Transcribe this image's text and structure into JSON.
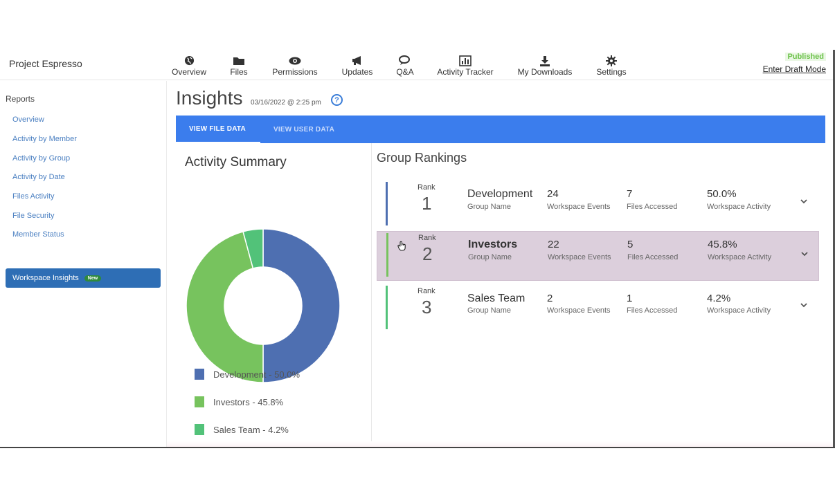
{
  "header": {
    "project": "Project Espresso",
    "nav": [
      {
        "label": "Overview",
        "icon": "globe-icon"
      },
      {
        "label": "Files",
        "icon": "folder-icon"
      },
      {
        "label": "Permissions",
        "icon": "eye-icon"
      },
      {
        "label": "Updates",
        "icon": "megaphone-icon"
      },
      {
        "label": "Q&A",
        "icon": "chat-icon"
      },
      {
        "label": "Activity Tracker",
        "icon": "bar-chart-icon"
      },
      {
        "label": "My Downloads",
        "icon": "download-icon"
      },
      {
        "label": "Settings",
        "icon": "gear-icon"
      }
    ],
    "status": "Published",
    "draft_link": "Enter Draft Mode"
  },
  "sidebar": {
    "heading": "Reports",
    "links": [
      "Overview",
      "Activity by Member",
      "Activity by Group",
      "Activity by Date",
      "Files Activity",
      "File Security",
      "Member Status"
    ],
    "workspace_button": "Workspace Insights",
    "workspace_badge": "New"
  },
  "main": {
    "title": "Insights",
    "date": "03/16/2022 @ 2:25 pm",
    "help": "?",
    "tabs": [
      "VIEW FILE DATA",
      "VIEW USER DATA"
    ]
  },
  "summary": {
    "heading": "Activity Summary",
    "legend": [
      {
        "label": "Development - 50.0%",
        "color": "#4e6fb1"
      },
      {
        "label": "Investors - 45.8%",
        "color": "#77c35e"
      },
      {
        "label": "Sales Team - 4.2%",
        "color": "#52c279"
      }
    ]
  },
  "chart_data": {
    "type": "pie",
    "categories": [
      "Development",
      "Investors",
      "Sales Team"
    ],
    "values": [
      50.0,
      45.8,
      4.2
    ],
    "colors": [
      "#4e6fb1",
      "#77c35e",
      "#52c279"
    ],
    "title": "Activity Summary"
  },
  "rankings": {
    "heading": "Group Rankings",
    "rank_label": "Rank",
    "group_label": "Group Name",
    "events_label": "Workspace Events",
    "files_label": "Files Accessed",
    "activity_label": "Workspace Activity",
    "rows": [
      {
        "rank": "1",
        "name": "Development",
        "events": "24",
        "files": "7",
        "activity": "50.0%",
        "color": "#4e6fb1"
      },
      {
        "rank": "2",
        "name": "Investors",
        "events": "22",
        "files": "5",
        "activity": "45.8%",
        "color": "#77c35e"
      },
      {
        "rank": "3",
        "name": "Sales Team",
        "events": "2",
        "files": "1",
        "activity": "4.2%",
        "color": "#52c279"
      }
    ]
  }
}
